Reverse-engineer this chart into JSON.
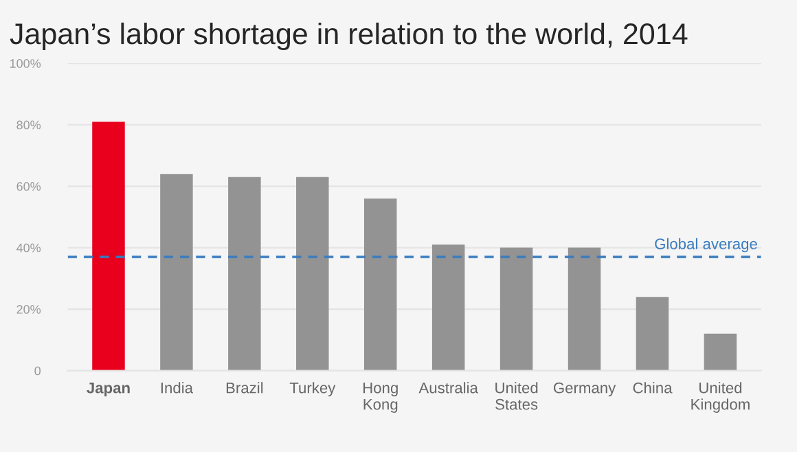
{
  "chart_data": {
    "type": "bar",
    "title": "Japan’s labor shortage in relation to the world, 2014",
    "categories": [
      "Japan",
      "India",
      "Brazil",
      "Turkey",
      "Hong\nKong",
      "Australia",
      "United\nStates",
      "Germany",
      "China",
      "United\nKingdom"
    ],
    "values": [
      81,
      64,
      63,
      63,
      56,
      41,
      40,
      40,
      24,
      12
    ],
    "colors": [
      "#e8001c",
      "#939393",
      "#939393",
      "#939393",
      "#939393",
      "#939393",
      "#939393",
      "#939393",
      "#939393",
      "#939393"
    ],
    "ylim": [
      0,
      100
    ],
    "yticks": [
      0,
      {
        "value": 20,
        "label": "20%"
      },
      {
        "value": 40,
        "label": "40%"
      },
      {
        "value": 60,
        "label": "60%"
      },
      {
        "value": 80,
        "label": "80%"
      },
      {
        "value": 100,
        "label": "100%"
      }
    ],
    "grid": "y",
    "ref_lines": [
      {
        "axis": "y",
        "value": 37,
        "label": "Global average",
        "color": "#3a7cbf",
        "line_style": "dashed"
      }
    ]
  }
}
